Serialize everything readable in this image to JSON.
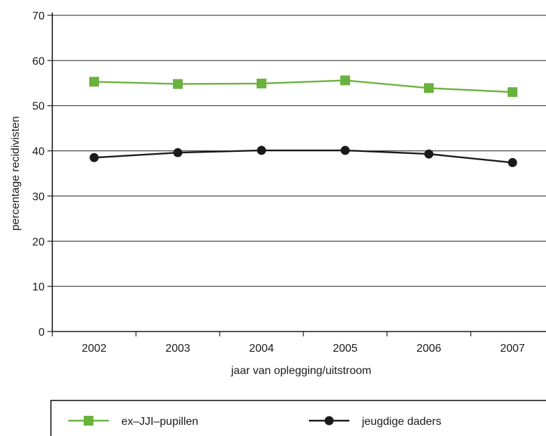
{
  "chart_data": {
    "type": "line",
    "title": "",
    "xlabel": "jaar van oplegging/uitstroom",
    "ylabel": "percentage recidivisten",
    "categories": [
      "2002",
      "2003",
      "2004",
      "2005",
      "2006",
      "2007"
    ],
    "ylim": [
      0,
      70
    ],
    "yticks": [
      "0",
      "10",
      "20",
      "30",
      "40",
      "50",
      "60",
      "70"
    ],
    "grid": true,
    "legend_position": "bottom",
    "series": [
      {
        "name": "ex–JJI–pupillen",
        "marker": "square",
        "color": "#6ab23e",
        "values": [
          55.3,
          54.8,
          54.9,
          55.6,
          53.9,
          53.0
        ]
      },
      {
        "name": "jeugdige daders",
        "marker": "circle",
        "color": "#1a1a1a",
        "values": [
          38.5,
          39.6,
          40.1,
          40.1,
          39.3,
          37.4
        ]
      }
    ]
  }
}
